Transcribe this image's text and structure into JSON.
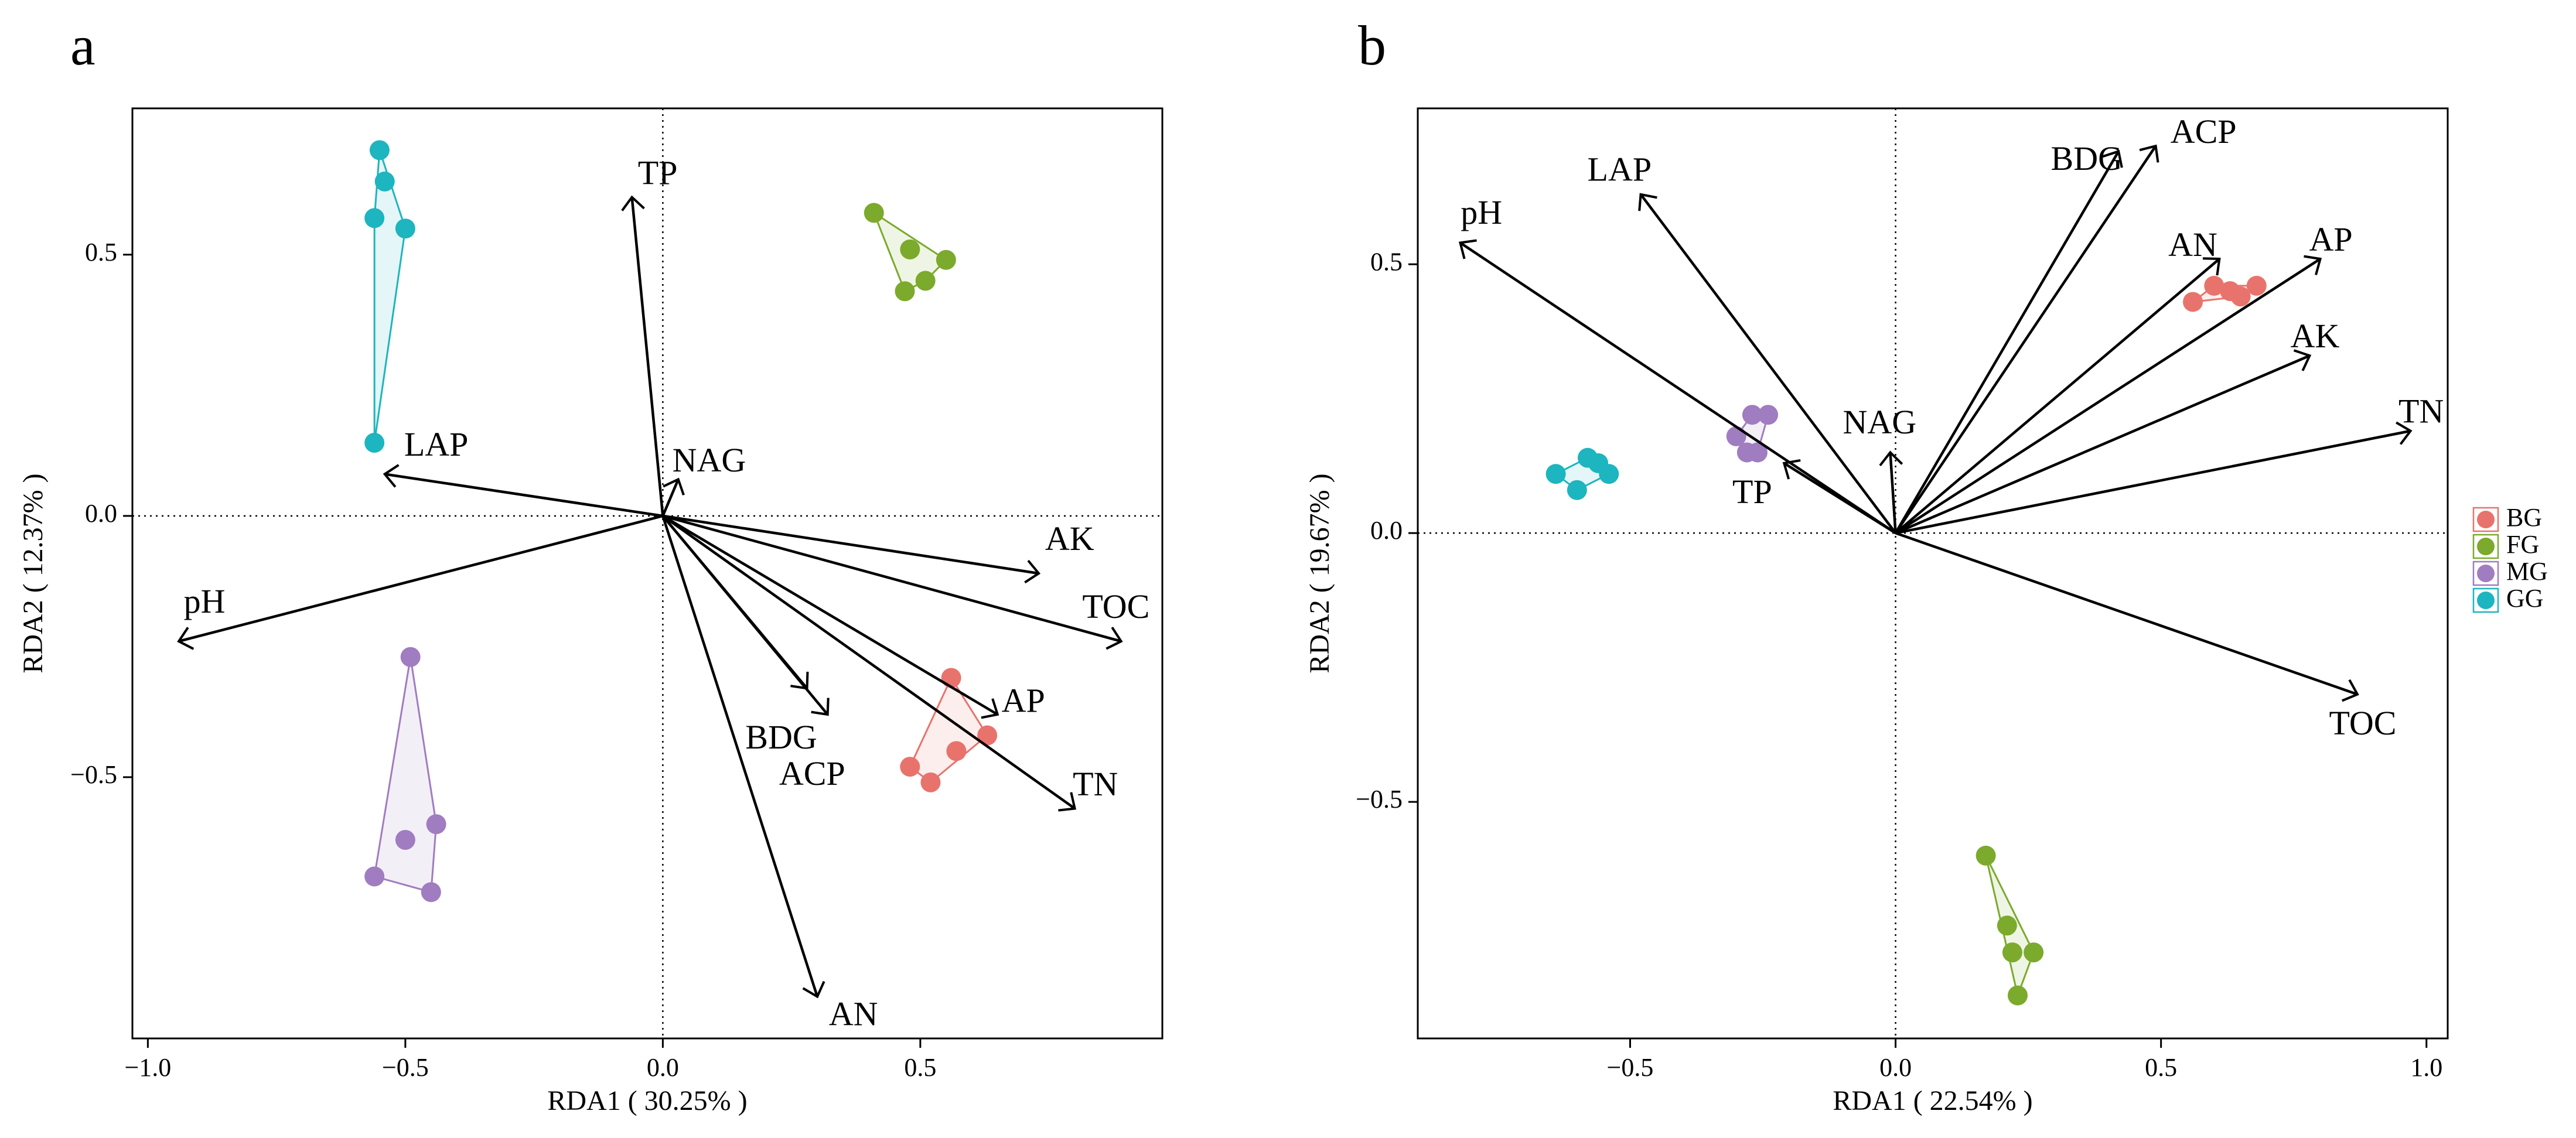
{
  "chart_data": [
    {
      "type": "scatter",
      "panel": "a",
      "xlabel": "RDA1 ( 30.25% )",
      "ylabel": "RDA2 ( 12.37% )",
      "xlim": [
        -1.03,
        0.97
      ],
      "ylim": [
        -1.0,
        0.78
      ],
      "xticks": [
        -1.0,
        -0.5,
        0.0,
        0.5
      ],
      "xtick_labels": [
        "−1.0",
        "−0.5",
        "0.0",
        "0.5"
      ],
      "yticks": [
        -0.5,
        0.0,
        0.5
      ],
      "ytick_labels": [
        "−0.5",
        "0.0",
        "0.5"
      ],
      "groups": [
        {
          "name": "BG",
          "color": "#E8736C",
          "points": [
            [
              0.56,
              -0.31
            ],
            [
              0.63,
              -0.42
            ],
            [
              0.57,
              -0.45
            ],
            [
              0.48,
              -0.48
            ],
            [
              0.52,
              -0.51
            ]
          ]
        },
        {
          "name": "FG",
          "color": "#7BAA2C",
          "points": [
            [
              0.41,
              0.58
            ],
            [
              0.48,
              0.51
            ],
            [
              0.55,
              0.49
            ],
            [
              0.51,
              0.45
            ],
            [
              0.47,
              0.43
            ]
          ]
        },
        {
          "name": "MG",
          "color": "#A07CC0",
          "points": [
            [
              -0.49,
              -0.27
            ],
            [
              -0.44,
              -0.59
            ],
            [
              -0.5,
              -0.62
            ],
            [
              -0.56,
              -0.69
            ],
            [
              -0.45,
              -0.72
            ]
          ]
        },
        {
          "name": "GG",
          "color": "#1DB5BF",
          "points": [
            [
              -0.55,
              0.7
            ],
            [
              -0.54,
              0.64
            ],
            [
              -0.56,
              0.57
            ],
            [
              -0.5,
              0.55
            ],
            [
              -0.56,
              0.14
            ]
          ]
        }
      ],
      "vectors": [
        {
          "name": "TP",
          "x": -0.06,
          "y": 0.61,
          "label_pos": [
            -0.01,
            0.65
          ]
        },
        {
          "name": "NAG",
          "x": 0.03,
          "y": 0.07,
          "label_pos": [
            0.09,
            0.1
          ]
        },
        {
          "name": "LAP",
          "x": -0.54,
          "y": 0.08,
          "label_pos": [
            -0.44,
            0.13
          ]
        },
        {
          "name": "pH",
          "x": -0.94,
          "y": -0.24,
          "label_pos": [
            -0.89,
            -0.17
          ]
        },
        {
          "name": "AK",
          "x": 0.73,
          "y": -0.11,
          "label_pos": [
            0.79,
            -0.05
          ]
        },
        {
          "name": "TOC",
          "x": 0.89,
          "y": -0.24,
          "label_pos": [
            0.88,
            -0.18
          ]
        },
        {
          "name": "AP",
          "x": 0.65,
          "y": -0.38,
          "label_pos": [
            0.7,
            -0.36
          ]
        },
        {
          "name": "TN",
          "x": 0.8,
          "y": -0.56,
          "label_pos": [
            0.84,
            -0.52
          ]
        },
        {
          "name": "BDG",
          "x": 0.28,
          "y": -0.33,
          "label_pos": [
            0.23,
            -0.43
          ]
        },
        {
          "name": "ACP",
          "x": 0.32,
          "y": -0.38,
          "label_pos": [
            0.29,
            -0.5
          ]
        },
        {
          "name": "AN",
          "x": 0.3,
          "y": -0.92,
          "label_pos": [
            0.37,
            -0.96
          ]
        }
      ]
    },
    {
      "type": "scatter",
      "panel": "b",
      "xlabel": "RDA1 ( 22.54% )",
      "ylabel": "RDA2 ( 19.67% )",
      "xlim": [
        -0.9,
        1.04
      ],
      "ylim": [
        -0.94,
        0.79
      ],
      "xticks": [
        -0.5,
        0.0,
        0.5,
        1.0
      ],
      "xtick_labels": [
        "−0.5",
        "0.0",
        "0.5",
        "1.0"
      ],
      "yticks": [
        -0.5,
        0.0,
        0.5
      ],
      "ytick_labels": [
        "−0.5",
        "0.0",
        "0.5"
      ],
      "groups": [
        {
          "name": "BG",
          "color": "#E8736C",
          "points": [
            [
              0.56,
              0.43
            ],
            [
              0.6,
              0.46
            ],
            [
              0.63,
              0.45
            ],
            [
              0.65,
              0.44
            ],
            [
              0.68,
              0.46
            ]
          ]
        },
        {
          "name": "FG",
          "color": "#7BAA2C",
          "points": [
            [
              0.17,
              -0.6
            ],
            [
              0.21,
              -0.73
            ],
            [
              0.22,
              -0.78
            ],
            [
              0.26,
              -0.78
            ],
            [
              0.23,
              -0.86
            ]
          ]
        },
        {
          "name": "MG",
          "color": "#A07CC0",
          "points": [
            [
              -0.3,
              0.18
            ],
            [
              -0.27,
              0.22
            ],
            [
              -0.24,
              0.22
            ],
            [
              -0.28,
              0.15
            ],
            [
              -0.26,
              0.15
            ]
          ]
        },
        {
          "name": "GG",
          "color": "#1DB5BF",
          "points": [
            [
              -0.64,
              0.11
            ],
            [
              -0.58,
              0.14
            ],
            [
              -0.56,
              0.13
            ],
            [
              -0.54,
              0.11
            ],
            [
              -0.6,
              0.08
            ]
          ]
        }
      ],
      "vectors": [
        {
          "name": "pH",
          "x": -0.82,
          "y": 0.54,
          "label_pos": [
            -0.78,
            0.59
          ]
        },
        {
          "name": "LAP",
          "x": -0.48,
          "y": 0.63,
          "label_pos": [
            -0.52,
            0.67
          ]
        },
        {
          "name": "BDG",
          "x": 0.42,
          "y": 0.71,
          "label_pos": [
            0.36,
            0.69
          ]
        },
        {
          "name": "ACP",
          "x": 0.49,
          "y": 0.72,
          "label_pos": [
            0.58,
            0.74
          ]
        },
        {
          "name": "AN",
          "x": 0.61,
          "y": 0.51,
          "label_pos": [
            0.56,
            0.53
          ]
        },
        {
          "name": "AP",
          "x": 0.8,
          "y": 0.51,
          "label_pos": [
            0.82,
            0.54
          ]
        },
        {
          "name": "AK",
          "x": 0.78,
          "y": 0.33,
          "label_pos": [
            0.79,
            0.36
          ]
        },
        {
          "name": "TN",
          "x": 0.97,
          "y": 0.19,
          "label_pos": [
            0.99,
            0.22
          ]
        },
        {
          "name": "NAG",
          "x": -0.01,
          "y": 0.15,
          "label_pos": [
            -0.03,
            0.2
          ]
        },
        {
          "name": "TP",
          "x": -0.21,
          "y": 0.13,
          "label_pos": [
            -0.27,
            0.07
          ]
        },
        {
          "name": "TOC",
          "x": 0.87,
          "y": -0.3,
          "label_pos": [
            0.88,
            -0.36
          ]
        }
      ]
    }
  ],
  "panels": [
    {
      "letter": "a"
    },
    {
      "letter": "b"
    }
  ],
  "legend": {
    "items": [
      {
        "label": "BG",
        "color": "#E8736C"
      },
      {
        "label": "FG",
        "color": "#7BAA2C"
      },
      {
        "label": "MG",
        "color": "#A07CC0"
      },
      {
        "label": "GG",
        "color": "#1DB5BF"
      }
    ]
  }
}
